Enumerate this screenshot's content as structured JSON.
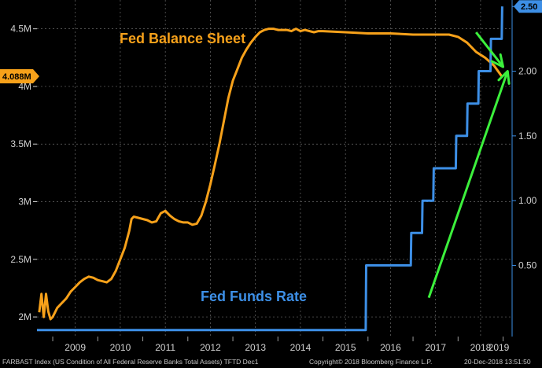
{
  "chart_data": {
    "type": "line",
    "title": "",
    "x_ticks": [
      "2009",
      "2010",
      "2011",
      "2012",
      "2013",
      "2014",
      "2015",
      "2016",
      "2017",
      "2018",
      "2019"
    ],
    "xlim": [
      2008.65,
      2019.2
    ],
    "left_axis": {
      "ticks": [
        "2M",
        "2.5M",
        "3M",
        "3.5M",
        "4M",
        "4.5M"
      ],
      "ylim": [
        1.83,
        4.75
      ]
    },
    "right_axis": {
      "ticks": [
        "0.50",
        "1.00",
        "1.50",
        "2.00",
        "2.50"
      ],
      "ylim": [
        -0.05,
        2.55
      ]
    },
    "grid": true,
    "series": [
      {
        "name": "Fed Balance Sheet",
        "axis": "left",
        "color": "#f7a11a",
        "last_value_label": "4.088M",
        "x": [
          2008.7,
          2008.75,
          2008.8,
          2008.85,
          2008.9,
          2008.95,
          2009.0,
          2009.1,
          2009.2,
          2009.3,
          2009.4,
          2009.5,
          2009.6,
          2009.7,
          2009.8,
          2009.9,
          2010.0,
          2010.1,
          2010.2,
          2010.3,
          2010.4,
          2010.5,
          2010.6,
          2010.7,
          2010.75,
          2010.8,
          2010.9,
          2011.0,
          2011.1,
          2011.2,
          2011.3,
          2011.4,
          2011.5,
          2011.6,
          2011.7,
          2011.8,
          2011.9,
          2012.0,
          2012.1,
          2012.2,
          2012.3,
          2012.4,
          2012.5,
          2012.6,
          2012.7,
          2012.8,
          2012.9,
          2013.0,
          2013.1,
          2013.2,
          2013.3,
          2013.4,
          2013.5,
          2013.6,
          2013.7,
          2013.8,
          2013.9,
          2014.0,
          2014.1,
          2014.2,
          2014.3,
          2014.4,
          2014.5,
          2014.6,
          2014.7,
          2014.8,
          2014.9,
          2015.0,
          2015.5,
          2016.0,
          2016.5,
          2017.0,
          2017.5,
          2017.8,
          2018.0,
          2018.2,
          2018.4,
          2018.6,
          2018.8,
          2018.97
        ],
        "values": [
          2.04,
          2.2,
          2.0,
          2.2,
          2.05,
          1.98,
          2.0,
          2.08,
          2.12,
          2.16,
          2.22,
          2.26,
          2.3,
          2.33,
          2.35,
          2.34,
          2.32,
          2.31,
          2.3,
          2.33,
          2.4,
          2.5,
          2.6,
          2.75,
          2.85,
          2.87,
          2.86,
          2.85,
          2.84,
          2.82,
          2.83,
          2.9,
          2.92,
          2.88,
          2.85,
          2.83,
          2.82,
          2.82,
          2.8,
          2.81,
          2.88,
          3.0,
          3.15,
          3.32,
          3.5,
          3.7,
          3.9,
          4.05,
          4.15,
          4.25,
          4.32,
          4.38,
          4.43,
          4.47,
          4.49,
          4.5,
          4.5,
          4.49,
          4.49,
          4.49,
          4.48,
          4.5,
          4.48,
          4.49,
          4.48,
          4.47,
          4.48,
          4.48,
          4.47,
          4.46,
          4.46,
          4.45,
          4.45,
          4.45,
          4.43,
          4.38,
          4.3,
          4.25,
          4.18,
          4.088
        ]
      },
      {
        "name": "Fed Funds Rate",
        "axis": "right",
        "color": "#3d8fe6",
        "last_value_label": "2.50",
        "x": [
          2008.65,
          2015.95,
          2015.96,
          2016.95,
          2016.96,
          2017.2,
          2017.21,
          2017.45,
          2017.46,
          2017.95,
          2017.96,
          2018.2,
          2018.21,
          2018.45,
          2018.46,
          2018.72,
          2018.73,
          2018.97,
          2018.98
        ],
        "values": [
          0.0,
          0.0,
          0.5,
          0.5,
          0.75,
          0.75,
          1.0,
          1.0,
          1.25,
          1.25,
          1.5,
          1.5,
          1.75,
          1.75,
          2.0,
          2.0,
          2.25,
          2.25,
          2.5
        ]
      }
    ],
    "annotations": [
      {
        "type": "arrow",
        "color": "#3cf03c",
        "from": [
          2018.4,
          4.47
        ],
        "to": [
          2019.0,
          4.17
        ],
        "axis": "left"
      },
      {
        "type": "arrow",
        "color": "#3cf03c",
        "from": [
          2017.35,
          0.25
        ],
        "to": [
          2019.1,
          2.0
        ],
        "axis": "right"
      }
    ]
  },
  "footer": {
    "left": "FARBAST Index (US Condition of All Federal Reserve Banks Total Assets) TFTD Dec1",
    "middle": "Copyright© 2018 Bloomberg Finance L.P.",
    "right": "20-Dec-2018 13:51:50"
  }
}
